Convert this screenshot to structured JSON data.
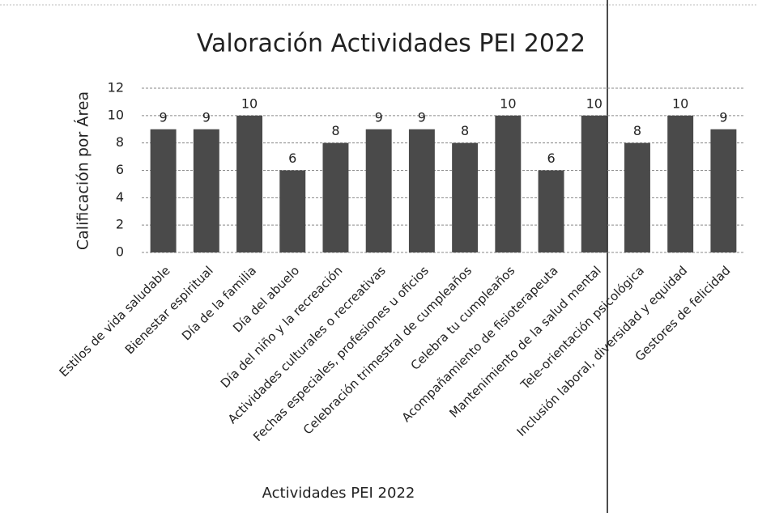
{
  "chart_data": {
    "type": "bar",
    "title": "Valoración Actividades PEI 2022",
    "y_label": "Calificación por Área",
    "x_label": "Actividades PEI 2022",
    "categories": [
      "Estilos de vida saludable",
      "Bienestar espiritual",
      "Día de la familia",
      "Día del abuelo",
      "Día del niño y la recreación",
      "Actividades culturales o recreativas",
      "Fechas especiales, profesiones u oficios",
      "Celebración trimestral de cumpleaños",
      "Celebra tu cumpleaños",
      "Acompañamiento de fisioterapeuta",
      "Mantenimiento de la salud mental",
      "Tele-orientación psicológica",
      "Inclusión laboral, diversidad y equidad",
      "Gestores de felicidad"
    ],
    "values": [
      9,
      9,
      10,
      6,
      8,
      9,
      9,
      8,
      10,
      6,
      10,
      8,
      10,
      9
    ],
    "color": "#4a4a4a",
    "ylim": [
      0,
      12
    ],
    "yticks": [
      0,
      2,
      4,
      6,
      8,
      10,
      12
    ],
    "grid": true
  }
}
